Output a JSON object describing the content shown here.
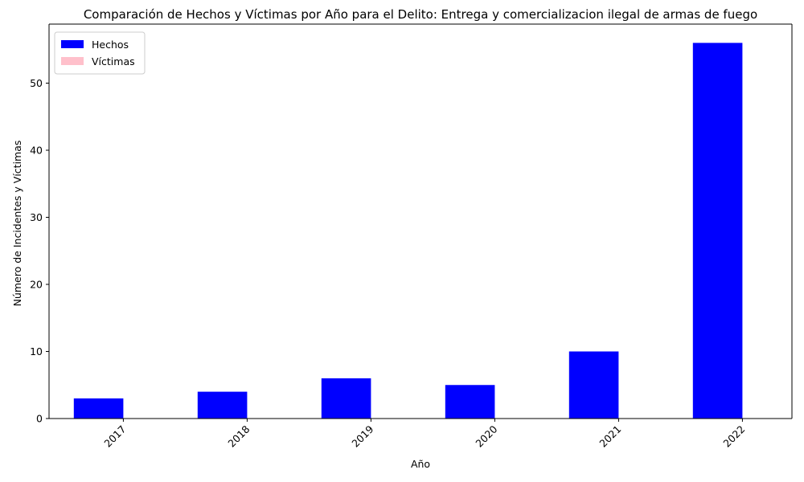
{
  "chart_data": {
    "type": "bar",
    "title": "Comparación de Hechos y Víctimas por Año para el Delito: Entrega y comercializacion ilegal de armas de fuego",
    "xlabel": "Año",
    "ylabel": "Número de Incidentes y Víctimas",
    "categories": [
      "2017",
      "2018",
      "2019",
      "2020",
      "2021",
      "2022"
    ],
    "series": [
      {
        "name": "Hechos",
        "color": "#0000ff",
        "values": [
          3,
          4,
          6,
          5,
          10,
          56
        ]
      },
      {
        "name": "Víctimas",
        "color": "#ffc0cb",
        "values": [
          0,
          0,
          0,
          0,
          0,
          0
        ]
      }
    ],
    "ylim": [
      0,
      58.8
    ],
    "yticks": [
      0,
      10,
      20,
      30,
      40,
      50
    ],
    "legend": "top-left",
    "grid": false,
    "xtick_rotation": 45
  }
}
